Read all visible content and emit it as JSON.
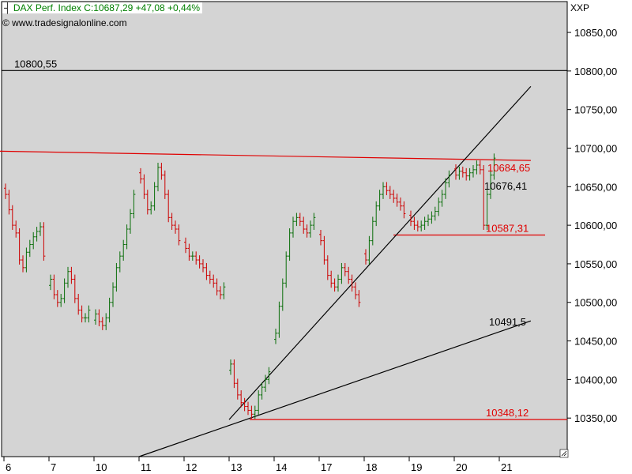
{
  "header": {
    "icon": "cursor-icon",
    "instrument": "DAX Perf. Index",
    "quote": "C:10687,29 +47,08 +0,44%",
    "website": "© www.tradesignalonline.com"
  },
  "chart_data": {
    "type": "ohlc",
    "xlabel": "",
    "ylabel": "XXP",
    "ylim": [
      10300,
      10890
    ],
    "grid": false,
    "plot_background": "#d4d4d4",
    "colors": {
      "up": "#0a6e0a",
      "down": "#cc0000",
      "trendline": "#000000",
      "level": "#e00000",
      "label_red": "#e00000"
    },
    "x_ticks": [
      "6",
      "7",
      "10",
      "11",
      "12",
      "13",
      "14",
      "17",
      "18",
      "19",
      "20",
      "21"
    ],
    "y_ticks": [
      "10350,00",
      "10400,00",
      "10450,00",
      "10500,00",
      "10550,00",
      "10600,00",
      "10650,00",
      "10700,00",
      "10750,00",
      "10800,00",
      "10850,00"
    ],
    "y_tick_values": [
      10350,
      10400,
      10450,
      10500,
      10550,
      10600,
      10650,
      10700,
      10750,
      10800,
      10850
    ],
    "levels": [
      {
        "label": "10800,55",
        "value": 10800.55,
        "color": "#000000",
        "label_pos": "left"
      },
      {
        "label": "10587,31",
        "value": 10587.31,
        "color": "#e00000",
        "label_pos": "right"
      },
      {
        "label": "10348,12",
        "value": 10348.12,
        "color": "#e00000",
        "label_pos": "right"
      }
    ],
    "trendlines": [
      {
        "label": "10684,65",
        "color": "#e00000",
        "from": {
          "day": "6",
          "value": 10696
        },
        "to": {
          "day": "21",
          "value": 10684
        }
      },
      {
        "label": "10491,5",
        "color": "#000000",
        "from": {
          "day": "11",
          "value": 10300
        },
        "to": {
          "day": "21",
          "value": 10476
        }
      },
      {
        "label": "10676,41",
        "color": "#000000",
        "from": {
          "day": "13",
          "value": 10348
        },
        "to": {
          "day": "21",
          "value": 10780
        }
      }
    ],
    "series": [
      {
        "day": "6",
        "closes": [
          10640,
          10620,
          10600,
          10590,
          10555,
          10545,
          10565,
          10575,
          10585,
          10592,
          10598,
          10560
        ]
      },
      {
        "day": "7",
        "closes": [
          10530,
          10510,
          10500,
          10505,
          10525,
          10540,
          10530,
          10505,
          10490,
          10480,
          10480,
          10490
        ]
      },
      {
        "day": "10",
        "closes": [
          10485,
          10475,
          10470,
          10480,
          10500,
          10520,
          10545,
          10560,
          10575,
          10595,
          10615,
          10640
        ]
      },
      {
        "day": "11",
        "closes": [
          10660,
          10640,
          10620,
          10625,
          10650,
          10675,
          10665,
          10640,
          10610,
          10600,
          10595,
          10580
        ]
      },
      {
        "day": "12",
        "closes": [
          10570,
          10560,
          10560,
          10555,
          10550,
          10545,
          10535,
          10530,
          10525,
          10515,
          10510,
          10520
        ]
      },
      {
        "day": "13",
        "closes": [
          10420,
          10395,
          10380,
          10370,
          10365,
          10360,
          10355,
          10360,
          10380,
          10390,
          10400,
          10410
        ]
      },
      {
        "day": "14",
        "closes": [
          10460,
          10495,
          10525,
          10560,
          10590,
          10605,
          10610,
          10605,
          10595,
          10590,
          10600,
          10610
        ]
      },
      {
        "day": "17",
        "closes": [
          10580,
          10555,
          10535,
          10525,
          10520,
          10530,
          10545,
          10540,
          10530,
          10520,
          10510,
          10500
        ]
      },
      {
        "day": "18",
        "closes": [
          10555,
          10580,
          10605,
          10625,
          10640,
          10650,
          10645,
          10640,
          10635,
          10630,
          10625,
          10615
        ]
      },
      {
        "day": "19",
        "closes": [
          10605,
          10600,
          10598,
          10600,
          10605,
          10608,
          10612,
          10618,
          10630,
          10640,
          10655,
          10665
        ]
      },
      {
        "day": "20",
        "closes": [
          10665,
          10670,
          10668,
          10664,
          10668,
          10672,
          10678,
          10672,
          10600,
          10640,
          10665,
          10687
        ]
      }
    ]
  }
}
